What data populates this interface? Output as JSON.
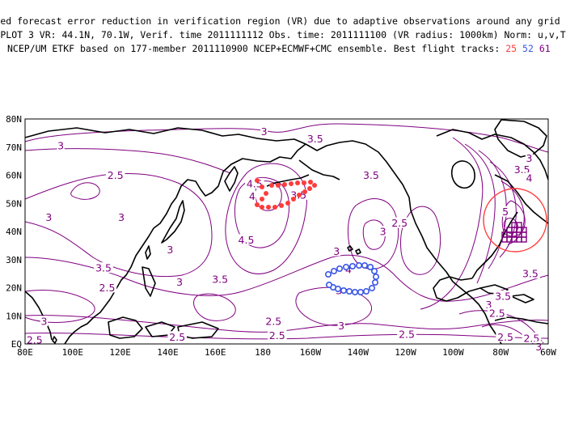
{
  "header": {
    "line1": "Expected forecast error reduction in verification region (VR) due to adaptive observations around any grid point.",
    "line2": "PLOT 3 VR: 44.1N, 70.1W, Verif. time 2011111112 Obs. time: 2011111100 (VR radius: 1000km) Norm: u,v,T",
    "line3_prefix": "NCEP/UM ETKF based on 177-member 2011110900 NCEP+ECMWF+CMC ensemble. Best flight tracks:",
    "tracks": [
      {
        "label": "25",
        "color": "#ff3b3b"
      },
      {
        "label": "52",
        "color": "#3a56e6"
      },
      {
        "label": "61",
        "color": "#800080"
      }
    ]
  },
  "map": {
    "lat_labels": [
      "80N",
      "70N",
      "60N",
      "50N",
      "40N",
      "30N",
      "20N",
      "10N",
      "EQ"
    ],
    "lon_labels": [
      "80E",
      "100E",
      "120E",
      "140E",
      "160E",
      "180",
      "160W",
      "140W",
      "120W",
      "100W",
      "80W",
      "60W"
    ],
    "contour_color": "#800080",
    "verification_circle_color": "#ff3b3b",
    "contour_labels": [
      {
        "text": "3",
        "lon": 180.5,
        "lat": 75.5
      },
      {
        "text": "3.5",
        "lon": 202,
        "lat": 73
      },
      {
        "text": "3",
        "lon": 95,
        "lat": 70.5
      },
      {
        "text": "2.5",
        "lon": 118,
        "lat": 60
      },
      {
        "text": "3.5",
        "lon": 225.5,
        "lat": 60
      },
      {
        "text": "3.5",
        "lon": 289,
        "lat": 62
      },
      {
        "text": "4",
        "lon": 292,
        "lat": 59
      },
      {
        "text": "3",
        "lon": 292,
        "lat": 66
      },
      {
        "text": "4.5",
        "lon": 176.5,
        "lat": 57
      },
      {
        "text": "4",
        "lon": 175.5,
        "lat": 52.5
      },
      {
        "text": "3.5",
        "lon": 195,
        "lat": 53
      },
      {
        "text": "5",
        "lon": 282,
        "lat": 47
      },
      {
        "text": "3",
        "lon": 90,
        "lat": 45
      },
      {
        "text": "3",
        "lon": 120.5,
        "lat": 45
      },
      {
        "text": "2.5",
        "lon": 237.5,
        "lat": 43
      },
      {
        "text": "3",
        "lon": 230.5,
        "lat": 40
      },
      {
        "text": "4.5",
        "lon": 173,
        "lat": 37
      },
      {
        "text": "3",
        "lon": 141,
        "lat": 33.5
      },
      {
        "text": "3",
        "lon": 211,
        "lat": 33
      },
      {
        "text": "4",
        "lon": 216,
        "lat": 26.5
      },
      {
        "text": "3.5",
        "lon": 113,
        "lat": 27
      },
      {
        "text": "3.5",
        "lon": 162,
        "lat": 23
      },
      {
        "text": "3",
        "lon": 145,
        "lat": 22
      },
      {
        "text": "3.5",
        "lon": 292.5,
        "lat": 25
      },
      {
        "text": "2.5",
        "lon": 114.5,
        "lat": 20
      },
      {
        "text": "3",
        "lon": 212,
        "lat": 19
      },
      {
        "text": "3.5",
        "lon": 281,
        "lat": 17
      },
      {
        "text": "3",
        "lon": 275,
        "lat": 14
      },
      {
        "text": "2.5",
        "lon": 184.5,
        "lat": 8
      },
      {
        "text": "2.5",
        "lon": 278.5,
        "lat": 11
      },
      {
        "text": "3",
        "lon": 213,
        "lat": 6.5
      },
      {
        "text": "3",
        "lon": 88,
        "lat": 8
      },
      {
        "text": "2.5",
        "lon": 144,
        "lat": 2.5
      },
      {
        "text": "2.5",
        "lon": 240.5,
        "lat": 3.5
      },
      {
        "text": "2.5",
        "lon": 84,
        "lat": 1.5
      },
      {
        "text": "2.5",
        "lon": 282,
        "lat": 2.5
      },
      {
        "text": "2.5",
        "lon": 186,
        "lat": 3
      },
      {
        "text": "2.5",
        "lon": 293,
        "lat": 2
      },
      {
        "text": "3",
        "lon": 296,
        "lat": -1
      }
    ]
  }
}
